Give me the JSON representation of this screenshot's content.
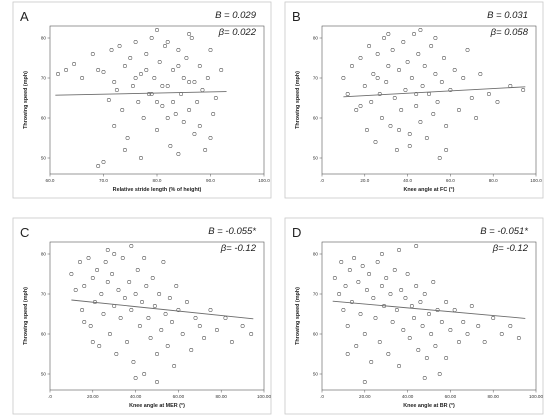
{
  "chart_data": [
    {
      "type": "scatter",
      "panel": "A",
      "stat_b": "B = 0.029",
      "stat_beta": "β= 0.022",
      "xlabel": "Relative stride length (% of height)",
      "ylabel": "Throwing speed (mph)",
      "xlim": [
        60,
        100
      ],
      "ylim": [
        46,
        83
      ],
      "xticks": [
        60,
        70,
        80,
        90,
        100
      ],
      "xtick_labels": [
        "60.0",
        "70.0",
        "80.0",
        "90.0",
        "100.0"
      ],
      "yticks": [
        50,
        60,
        70,
        80
      ],
      "ytick_labels": [
        "50",
        "60",
        "70",
        "80"
      ],
      "trend": {
        "x": [
          61,
          93
        ],
        "y": [
          65.7,
          66.6
        ]
      },
      "points": [
        [
          61.5,
          71
        ],
        [
          63,
          72
        ],
        [
          64.5,
          73.5
        ],
        [
          66,
          70
        ],
        [
          68,
          76
        ],
        [
          69,
          72
        ],
        [
          70,
          71.5
        ],
        [
          71,
          64.5
        ],
        [
          71.5,
          77
        ],
        [
          72,
          58
        ],
        [
          72.5,
          67
        ],
        [
          73,
          78
        ],
        [
          73.5,
          62
        ],
        [
          74,
          73
        ],
        [
          74.5,
          55
        ],
        [
          75,
          75
        ],
        [
          75.5,
          68
        ],
        [
          76,
          79
        ],
        [
          76.5,
          64
        ],
        [
          77,
          71
        ],
        [
          77.5,
          60
        ],
        [
          78,
          76
        ],
        [
          78.5,
          66
        ],
        [
          79,
          80
        ],
        [
          79.5,
          70
        ],
        [
          80,
          57
        ],
        [
          80.5,
          74
        ],
        [
          81,
          63
        ],
        [
          81.5,
          78
        ],
        [
          82,
          68
        ],
        [
          82.5,
          53
        ],
        [
          83,
          72
        ],
        [
          83.5,
          61
        ],
        [
          84,
          77
        ],
        [
          84.5,
          66
        ],
        [
          85,
          59
        ],
        [
          85.5,
          75
        ],
        [
          86,
          69
        ],
        [
          86.5,
          80
        ],
        [
          87,
          56
        ],
        [
          87.5,
          64
        ],
        [
          88,
          73
        ],
        [
          88.5,
          67
        ],
        [
          89,
          52
        ],
        [
          89.5,
          70
        ],
        [
          90,
          77
        ],
        [
          90.5,
          61
        ],
        [
          91,
          65
        ],
        [
          92,
          72
        ],
        [
          74,
          52
        ],
        [
          77,
          50
        ],
        [
          80,
          82
        ],
        [
          82,
          79
        ],
        [
          84,
          51
        ],
        [
          86,
          81
        ],
        [
          79,
          66
        ],
        [
          81,
          68
        ],
        [
          83,
          64
        ],
        [
          85,
          70
        ],
        [
          87,
          69
        ],
        [
          72,
          69
        ],
        [
          76,
          70
        ],
        [
          78,
          72
        ],
        [
          80,
          64
        ],
        [
          82,
          60
        ],
        [
          84,
          73
        ],
        [
          86,
          62
        ],
        [
          88,
          58
        ],
        [
          90,
          55
        ],
        [
          70,
          49
        ],
        [
          69,
          48
        ]
      ]
    },
    {
      "type": "scatter",
      "panel": "B",
      "stat_b": "B = 0.031",
      "stat_beta": "β= 0.058",
      "xlabel": "Knee angle at FC (°)",
      "ylabel": "Throwing speed (mph)",
      "xlim": [
        0,
        100
      ],
      "ylim": [
        46,
        83
      ],
      "xticks": [
        0,
        20,
        40,
        60,
        80,
        100
      ],
      "xtick_labels": [
        ".0",
        "20.0",
        "40.0",
        "60.0",
        "80.0",
        "100.0"
      ],
      "yticks": [
        50,
        60,
        70,
        80
      ],
      "ytick_labels": [
        "50",
        "60",
        "70",
        "80"
      ],
      "trend": {
        "x": [
          10,
          95
        ],
        "y": [
          65.3,
          67.8
        ]
      },
      "points": [
        [
          10,
          70
        ],
        [
          12,
          66
        ],
        [
          14,
          73
        ],
        [
          16,
          62
        ],
        [
          18,
          75
        ],
        [
          20,
          68
        ],
        [
          21,
          57
        ],
        [
          22,
          78
        ],
        [
          23,
          64
        ],
        [
          24,
          71
        ],
        [
          25,
          54
        ],
        [
          26,
          76
        ],
        [
          27,
          66
        ],
        [
          28,
          60
        ],
        [
          29,
          80
        ],
        [
          30,
          69
        ],
        [
          31,
          73
        ],
        [
          32,
          58
        ],
        [
          33,
          77
        ],
        [
          34,
          65
        ],
        [
          35,
          52
        ],
        [
          36,
          72
        ],
        [
          37,
          62
        ],
        [
          38,
          79
        ],
        [
          39,
          67
        ],
        [
          40,
          74
        ],
        [
          41,
          56
        ],
        [
          42,
          70
        ],
        [
          43,
          81
        ],
        [
          44,
          63
        ],
        [
          45,
          76
        ],
        [
          46,
          59
        ],
        [
          47,
          68
        ],
        [
          48,
          73
        ],
        [
          49,
          55
        ],
        [
          50,
          66
        ],
        [
          51,
          78
        ],
        [
          52,
          61
        ],
        [
          53,
          71
        ],
        [
          54,
          64
        ],
        [
          55,
          50
        ],
        [
          56,
          69
        ],
        [
          57,
          75
        ],
        [
          58,
          58
        ],
        [
          60,
          67
        ],
        [
          62,
          72
        ],
        [
          64,
          62
        ],
        [
          66,
          70
        ],
        [
          68,
          77
        ],
        [
          70,
          65
        ],
        [
          72,
          60
        ],
        [
          74,
          71
        ],
        [
          78,
          66
        ],
        [
          82,
          64
        ],
        [
          88,
          68
        ],
        [
          94,
          67
        ],
        [
          31,
          81
        ],
        [
          46,
          82
        ],
        [
          53,
          80
        ],
        [
          36,
          57
        ],
        [
          41,
          53
        ],
        [
          58,
          52
        ],
        [
          18,
          63
        ],
        [
          26,
          70
        ],
        [
          44,
          66
        ]
      ]
    },
    {
      "type": "scatter",
      "panel": "C",
      "stat_b": "B = -0.055*",
      "stat_beta": "β= -0.12",
      "xlabel": "Knee angle at MER (°)",
      "ylabel": "Throwing speed (mph)",
      "xlim": [
        0,
        100
      ],
      "ylim": [
        46,
        83
      ],
      "xticks": [
        0,
        20,
        40,
        60,
        80,
        100
      ],
      "xtick_labels": [
        ".0",
        "20.00",
        "40.00",
        "60.00",
        "80.00",
        "100.00"
      ],
      "yticks": [
        50,
        60,
        70,
        80
      ],
      "ytick_labels": [
        "50",
        "60",
        "70",
        "80"
      ],
      "trend": {
        "x": [
          10,
          95
        ],
        "y": [
          68.5,
          63.8
        ]
      },
      "points": [
        [
          10,
          75
        ],
        [
          12,
          71
        ],
        [
          14,
          78
        ],
        [
          15,
          66
        ],
        [
          16,
          72
        ],
        [
          18,
          79
        ],
        [
          19,
          62
        ],
        [
          20,
          74
        ],
        [
          21,
          68
        ],
        [
          22,
          76
        ],
        [
          23,
          57
        ],
        [
          24,
          70
        ],
        [
          25,
          65
        ],
        [
          26,
          78
        ],
        [
          27,
          73
        ],
        [
          28,
          60
        ],
        [
          29,
          75
        ],
        [
          30,
          67
        ],
        [
          31,
          55
        ],
        [
          32,
          71
        ],
        [
          33,
          64
        ],
        [
          34,
          79
        ],
        [
          35,
          69
        ],
        [
          36,
          58
        ],
        [
          37,
          73
        ],
        [
          38,
          66
        ],
        [
          39,
          53
        ],
        [
          40,
          70
        ],
        [
          41,
          76
        ],
        [
          42,
          62
        ],
        [
          43,
          68
        ],
        [
          44,
          50
        ],
        [
          45,
          72
        ],
        [
          46,
          64
        ],
        [
          47,
          59
        ],
        [
          48,
          74
        ],
        [
          49,
          67
        ],
        [
          50,
          55
        ],
        [
          51,
          70
        ],
        [
          52,
          61
        ],
        [
          53,
          78
        ],
        [
          54,
          65
        ],
        [
          55,
          57
        ],
        [
          56,
          69
        ],
        [
          57,
          63
        ],
        [
          58,
          52
        ],
        [
          59,
          72
        ],
        [
          60,
          66
        ],
        [
          62,
          60
        ],
        [
          64,
          68
        ],
        [
          66,
          56
        ],
        [
          68,
          64
        ],
        [
          70,
          62
        ],
        [
          72,
          59
        ],
        [
          75,
          66
        ],
        [
          78,
          61
        ],
        [
          82,
          64
        ],
        [
          85,
          58
        ],
        [
          90,
          62
        ],
        [
          94,
          60
        ],
        [
          30,
          80
        ],
        [
          38,
          82
        ],
        [
          27,
          81
        ],
        [
          44,
          79
        ],
        [
          50,
          48
        ],
        [
          40,
          49
        ],
        [
          16,
          63
        ],
        [
          20,
          58
        ]
      ]
    },
    {
      "type": "scatter",
      "panel": "D",
      "stat_b": "B = -0.051*",
      "stat_beta": "β= -0.12",
      "xlabel": "Knee angle at BR (°)",
      "ylabel": "Throwing speed (mph)",
      "xlim": [
        0,
        100
      ],
      "ylim": [
        46,
        83
      ],
      "xticks": [
        0,
        20,
        40,
        60,
        80,
        100
      ],
      "xtick_labels": [
        ".0",
        "20.00",
        "40.00",
        "60.00",
        "80.00",
        "100.00"
      ],
      "yticks": [
        50,
        60,
        70,
        80
      ],
      "ytick_labels": [
        "50",
        "60",
        "70",
        "80"
      ],
      "trend": {
        "x": [
          5,
          95
        ],
        "y": [
          68.2,
          63.9
        ]
      },
      "points": [
        [
          6,
          74
        ],
        [
          8,
          70
        ],
        [
          9,
          78
        ],
        [
          10,
          66
        ],
        [
          11,
          72
        ],
        [
          12,
          62
        ],
        [
          13,
          76
        ],
        [
          14,
          68
        ],
        [
          15,
          79
        ],
        [
          16,
          57
        ],
        [
          17,
          73
        ],
        [
          18,
          65
        ],
        [
          19,
          77
        ],
        [
          20,
          60
        ],
        [
          21,
          71
        ],
        [
          22,
          75
        ],
        [
          23,
          53
        ],
        [
          24,
          69
        ],
        [
          25,
          64
        ],
        [
          26,
          78
        ],
        [
          27,
          58
        ],
        [
          28,
          72
        ],
        [
          29,
          67
        ],
        [
          30,
          74
        ],
        [
          31,
          55
        ],
        [
          32,
          70
        ],
        [
          33,
          63
        ],
        [
          34,
          76
        ],
        [
          35,
          66
        ],
        [
          36,
          52
        ],
        [
          37,
          71
        ],
        [
          38,
          61
        ],
        [
          39,
          69
        ],
        [
          40,
          75
        ],
        [
          41,
          59
        ],
        [
          42,
          67
        ],
        [
          43,
          64
        ],
        [
          44,
          72
        ],
        [
          45,
          56
        ],
        [
          46,
          68
        ],
        [
          47,
          62
        ],
        [
          48,
          70
        ],
        [
          49,
          54
        ],
        [
          50,
          65
        ],
        [
          51,
          60
        ],
        [
          52,
          73
        ],
        [
          53,
          57
        ],
        [
          54,
          66
        ],
        [
          55,
          50
        ],
        [
          56,
          63
        ],
        [
          58,
          68
        ],
        [
          60,
          61
        ],
        [
          62,
          66
        ],
        [
          64,
          58
        ],
        [
          66,
          63
        ],
        [
          68,
          60
        ],
        [
          70,
          67
        ],
        [
          73,
          62
        ],
        [
          76,
          58
        ],
        [
          80,
          64
        ],
        [
          84,
          60
        ],
        [
          88,
          62
        ],
        [
          92,
          59
        ],
        [
          28,
          80
        ],
        [
          36,
          81
        ],
        [
          44,
          82
        ],
        [
          20,
          48
        ],
        [
          12,
          55
        ],
        [
          48,
          49
        ],
        [
          58,
          54
        ]
      ]
    }
  ]
}
